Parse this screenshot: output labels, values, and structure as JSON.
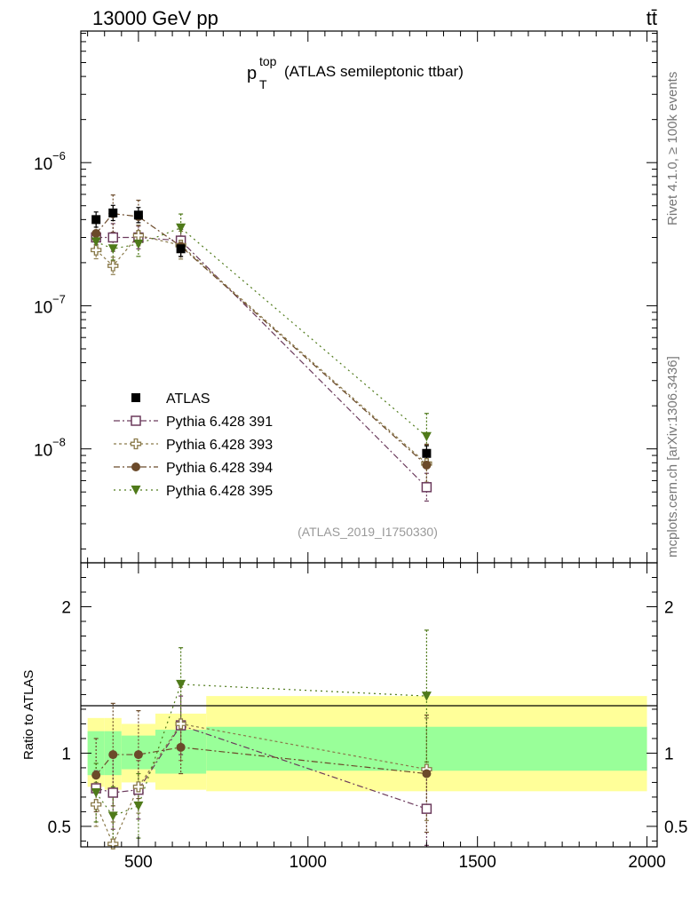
{
  "header": {
    "left": "13000 GeV pp",
    "right": "tt̄"
  },
  "side_labels": {
    "rivet": "Rivet 4.1.0, ≥ 100k events",
    "mcplots": "mcplots.cern.ch [arXiv:1306.3436]"
  },
  "chart_data": {
    "type": "line",
    "title_main": "p",
    "title_sub": "T",
    "title_sup": "top",
    "title_rest": "(ATLAS semileptonic ttbar)",
    "analysis_tag": "(ATLAS_2019_I1750330)",
    "xlabel": "",
    "ylabel": "",
    "ratio_ylabel": "Ratio to ATLAS",
    "xlim": [
      330,
      2030
    ],
    "ylim_log": [
      1.6e-09,
      8.3e-06
    ],
    "ratio_ylim": [
      0.36,
      2.3
    ],
    "x_ticks": [
      500,
      1000,
      1500,
      2000
    ],
    "x_tick_labels": [
      "500",
      "1000",
      "1500",
      "2000"
    ],
    "y_ticks": [
      1e-08,
      1e-07,
      1e-06
    ],
    "y_tick_labels": [
      {
        "base": "10",
        "exp": "−8"
      },
      {
        "base": "10",
        "exp": "−7"
      },
      {
        "base": "10",
        "exp": "−6"
      }
    ],
    "ratio_ticks": [
      0.5,
      1,
      2
    ],
    "ratio_tick_labels": [
      "0.5",
      "1",
      "2"
    ],
    "data": {
      "name": "ATLAS",
      "color": "#000000",
      "x": [
        375,
        425,
        500,
        625,
        1350
      ],
      "y": [
        4e-07,
        4.45e-07,
        4.3e-07,
        2.5e-07,
        9.3e-09
      ],
      "bin_edges": [
        350,
        400,
        450,
        550,
        700,
        2000
      ],
      "band_inner": [
        [
          0.85,
          1.15
        ],
        [
          0.85,
          1.15
        ],
        [
          0.89,
          1.12
        ],
        [
          0.86,
          1.16
        ],
        [
          0.88,
          1.18
        ]
      ],
      "band_outer": [
        [
          0.77,
          1.24
        ],
        [
          0.75,
          1.24
        ],
        [
          0.8,
          1.2
        ],
        [
          0.75,
          1.27
        ],
        [
          0.74,
          1.39
        ]
      ],
      "band_inner_color": "#99ff99",
      "band_outer_color": "#ffff99"
    },
    "series": [
      {
        "name": "Pythia 6.428 391",
        "color": "#6b3a5c",
        "marker": "open-square",
        "dash": "7,3,2,3",
        "x": [
          375,
          425,
          500,
          625,
          1350
        ],
        "y": [
          3e-07,
          3e-07,
          3e-07,
          2.85e-07,
          5.4e-09
        ],
        "ratio": [
          0.76,
          0.73,
          0.75,
          1.19,
          0.62
        ],
        "ratio_err": [
          0.12,
          0.25,
          0.2,
          0.2,
          0.25
        ]
      },
      {
        "name": "Pythia 6.428 393",
        "color": "#8a7a4a",
        "marker": "open-cross",
        "dash": "3,3",
        "x": [
          375,
          425,
          500,
          625,
          1350
        ],
        "y": [
          2.45e-07,
          1.9e-07,
          3.1e-07,
          2.65e-07,
          7.9e-09
        ],
        "ratio": [
          0.65,
          0.38,
          0.77,
          1.2,
          0.89
        ],
        "ratio_err": [
          0.15,
          0.15,
          0.18,
          0.25,
          0.35
        ]
      },
      {
        "name": "Pythia 6.428 394",
        "color": "#6b4a2a",
        "marker": "filled-circle",
        "dash": "7,3,2,3",
        "x": [
          375,
          425,
          500,
          625,
          1350
        ],
        "y": [
          3.2e-07,
          4.4e-07,
          4.2e-07,
          2.6e-07,
          7.7e-09
        ],
        "ratio": [
          0.85,
          0.99,
          0.99,
          1.04,
          0.86
        ],
        "ratio_err": [
          0.25,
          0.35,
          0.3,
          0.18,
          0.4
        ]
      },
      {
        "name": "Pythia 6.428 395",
        "color": "#4f7a1a",
        "marker": "filled-triangle-down",
        "dash": "2,4",
        "x": [
          375,
          425,
          500,
          625,
          1350
        ],
        "y": [
          2.8e-07,
          2.5e-07,
          2.7e-07,
          3.5e-07,
          1.22e-08
        ],
        "ratio": [
          0.73,
          0.57,
          0.64,
          1.47,
          1.39
        ],
        "ratio_err": [
          0.2,
          0.2,
          0.22,
          0.25,
          0.45
        ]
      }
    ]
  }
}
